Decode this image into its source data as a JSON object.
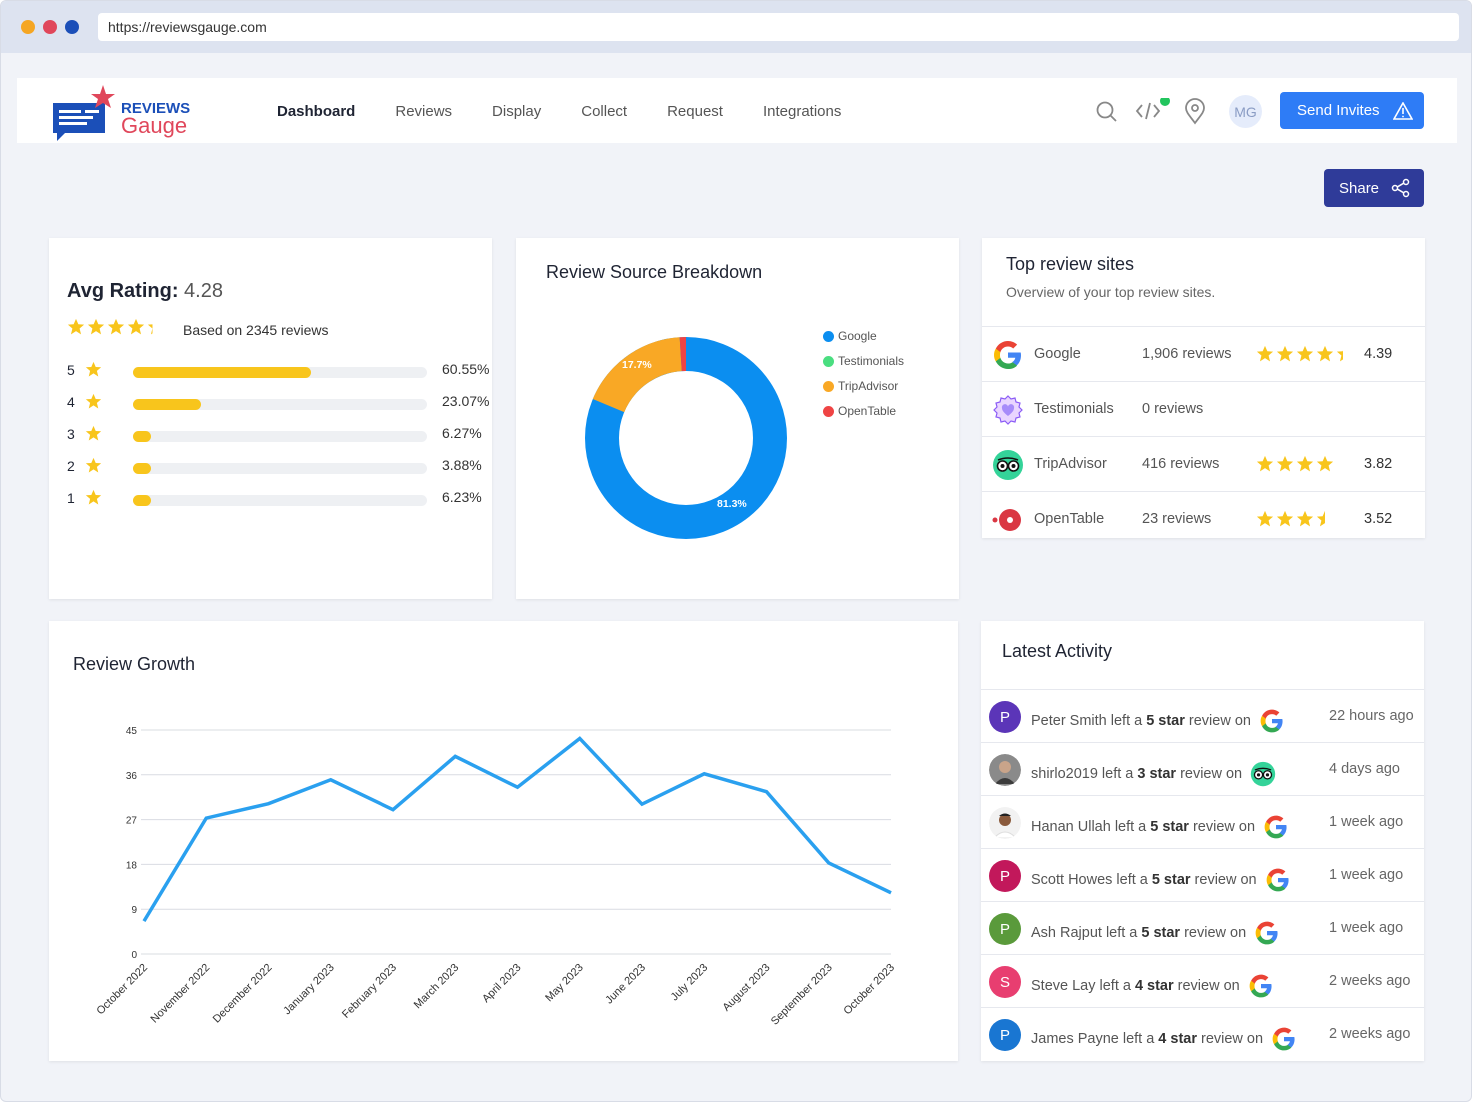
{
  "browser": {
    "url": "https://reviewsgauge.com",
    "dot_colors": [
      "#f5a623",
      "#e0475b",
      "#1b4fb8"
    ]
  },
  "brand": {
    "name_top": "REVIEWS",
    "name_bottom": "Gauge"
  },
  "nav": {
    "links": [
      "Dashboard",
      "Reviews",
      "Display",
      "Collect",
      "Request",
      "Integrations"
    ],
    "active": "Dashboard",
    "avatar_initials": "MG",
    "send_invites_label": "Send Invites",
    "icons": [
      "search-icon",
      "code-icon",
      "location-pin-icon",
      "warning-triangle-icon"
    ]
  },
  "share_label": "Share",
  "avg_rating": {
    "label": "Avg Rating:",
    "value": "4.28",
    "stars": 4.28,
    "based_on": "Based on 2345 reviews",
    "breakdown": [
      {
        "star": "5",
        "pct_label": "60.55%",
        "pct": 60.55
      },
      {
        "star": "4",
        "pct_label": "23.07%",
        "pct": 23.07
      },
      {
        "star": "3",
        "pct_label": "6.27%",
        "pct": 6.27
      },
      {
        "star": "2",
        "pct_label": "3.88%",
        "pct": 3.88
      },
      {
        "star": "1",
        "pct_label": "6.23%",
        "pct": 6.23
      }
    ]
  },
  "source_breakdown": {
    "title": "Review Source Breakdown",
    "legend": [
      "Google",
      "Testimonials",
      "TripAdvisor",
      "OpenTable"
    ],
    "google_label": "81.3%",
    "tripadvisor_label": "17.7%"
  },
  "top_sites": {
    "title": "Top review sites",
    "subtitle": "Overview of your top review sites.",
    "sites": [
      {
        "name": "Google",
        "reviews": "1,906 reviews",
        "score": "4.39",
        "stars": 4.39,
        "icon": "google-icon"
      },
      {
        "name": "Testimonials",
        "reviews": "0 reviews",
        "score": "",
        "stars": 0,
        "icon": "heart-badge-icon"
      },
      {
        "name": "TripAdvisor",
        "reviews": "416 reviews",
        "score": "3.82",
        "stars": 4,
        "icon": "tripadvisor-icon"
      },
      {
        "name": "OpenTable",
        "reviews": "23 reviews",
        "score": "3.52",
        "stars": 3.5,
        "icon": "opentable-icon"
      }
    ]
  },
  "growth": {
    "title": "Review Growth"
  },
  "chart_data": {
    "type": "line",
    "title": "Review Growth",
    "xlabel": "",
    "ylabel": "",
    "categories": [
      "October 2022",
      "November 2022",
      "December 2022",
      "January 2023",
      "February 2023",
      "March 2023",
      "April 2023",
      "May 2023",
      "June 2023",
      "July 2023",
      "August 2023",
      "September 2023",
      "October 2023"
    ],
    "values": [
      6.6,
      27.3,
      30.2,
      35.0,
      29.0,
      39.7,
      33.5,
      43.3,
      30.1,
      36.2,
      32.6,
      18.3,
      12.3
    ],
    "yticks": [
      "0",
      "9",
      "18",
      "27",
      "36",
      "45"
    ],
    "ylim": [
      0,
      45
    ],
    "grid": true,
    "color": "#2aa0ef"
  },
  "activity": {
    "title": "Latest Activity",
    "items": [
      {
        "initial": "P",
        "name": "Peter Smith",
        "left": "left a",
        "rating": "5 star",
        "suffix": "review on",
        "time": "22 hours ago",
        "color": "#5b35b8",
        "source": "google-icon"
      },
      {
        "initial": "",
        "name": "shirlo2019",
        "left": "left a",
        "rating": "3 star",
        "suffix": "review on",
        "time": "4 days ago",
        "color": "#6a6a6a",
        "source": "tripadvisor-icon"
      },
      {
        "initial": "",
        "name": "Hanan Ullah",
        "left": "left a",
        "rating": "5 star",
        "suffix": "review on",
        "time": "1 week ago",
        "color": "#8a5a3c",
        "source": "google-icon"
      },
      {
        "initial": "P",
        "name": "Scott Howes",
        "left": "left a",
        "rating": "5 star",
        "suffix": "review on",
        "time": "1 week ago",
        "color": "#c2185b",
        "source": "google-icon"
      },
      {
        "initial": "P",
        "name": "Ash Rajput",
        "left": "left a",
        "rating": "5 star",
        "suffix": "review on",
        "time": "1 week ago",
        "color": "#5a9a3b",
        "source": "google-icon"
      },
      {
        "initial": "S",
        "name": "Steve Lay",
        "left": "left a",
        "rating": "4 star",
        "suffix": "review on",
        "time": "2 weeks ago",
        "color": "#e83e70",
        "source": "google-icon"
      },
      {
        "initial": "P",
        "name": "James Payne",
        "left": "left a",
        "rating": "4 star",
        "suffix": "review on",
        "time": "2 weeks ago",
        "color": "#1976d2",
        "source": "google-icon"
      }
    ]
  }
}
